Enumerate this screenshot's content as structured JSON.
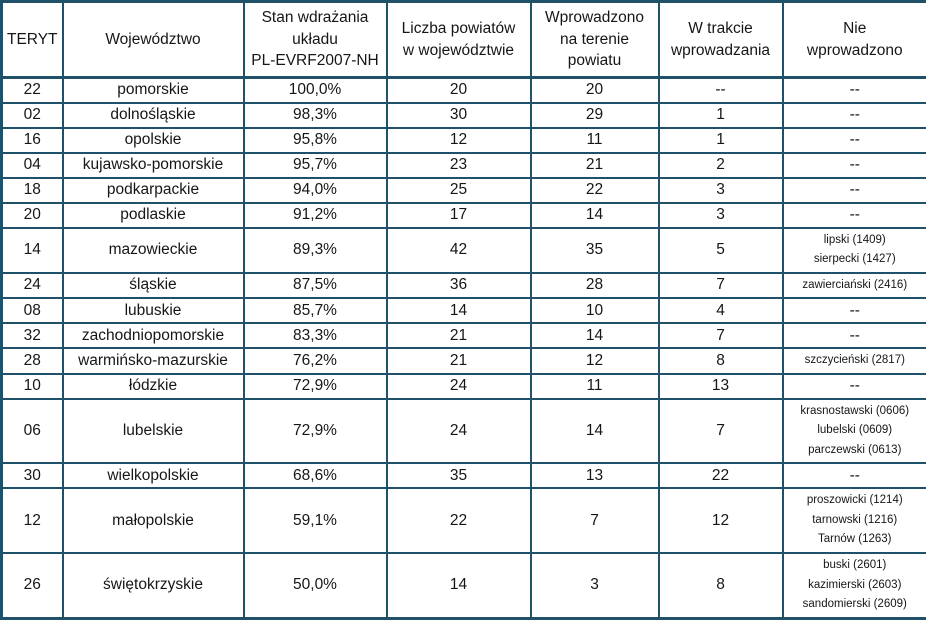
{
  "colors": {
    "table_border": "#1F5168",
    "text": "#161616",
    "background": "#FFFFFF"
  },
  "table": {
    "columns": [
      {
        "key": "teryt",
        "label": "TERYT"
      },
      {
        "key": "wojewodztwo",
        "label": "Województwo"
      },
      {
        "key": "stan",
        "label": "Stan wdrażania\nukładu\nPL-EVRF2007-NH"
      },
      {
        "key": "liczba",
        "label": "Liczba powiatów\nw województwie"
      },
      {
        "key": "wprowadzono",
        "label": "Wprowadzono\nna terenie\npowiatu"
      },
      {
        "key": "w_trakcie",
        "label": "W trakcie\nwprowadzania"
      },
      {
        "key": "nie",
        "label": "Nie\nwprowadzono"
      }
    ],
    "rows": [
      {
        "teryt": "22",
        "wojewodztwo": "pomorskie",
        "stan": "100,0%",
        "liczba": "20",
        "wprowadzono": "20",
        "w_trakcie": "--",
        "nie": "--"
      },
      {
        "teryt": "02",
        "wojewodztwo": "dolnośląskie",
        "stan": "98,3%",
        "liczba": "30",
        "wprowadzono": "29",
        "w_trakcie": "1",
        "nie": "--"
      },
      {
        "teryt": "16",
        "wojewodztwo": "opolskie",
        "stan": "95,8%",
        "liczba": "12",
        "wprowadzono": "11",
        "w_trakcie": "1",
        "nie": "--"
      },
      {
        "teryt": "04",
        "wojewodztwo": "kujawsko-pomorskie",
        "stan": "95,7%",
        "liczba": "23",
        "wprowadzono": "21",
        "w_trakcie": "2",
        "nie": "--"
      },
      {
        "teryt": "18",
        "wojewodztwo": "podkarpackie",
        "stan": "94,0%",
        "liczba": "25",
        "wprowadzono": "22",
        "w_trakcie": "3",
        "nie": "--"
      },
      {
        "teryt": "20",
        "wojewodztwo": "podlaskie",
        "stan": "91,2%",
        "liczba": "17",
        "wprowadzono": "14",
        "w_trakcie": "3",
        "nie": "--"
      },
      {
        "teryt": "14",
        "wojewodztwo": "mazowieckie",
        "stan": "89,3%",
        "liczba": "42",
        "wprowadzono": "35",
        "w_trakcie": "5",
        "nie": "lipski (1409)\nsierpecki (1427)"
      },
      {
        "teryt": "24",
        "wojewodztwo": "śląskie",
        "stan": "87,5%",
        "liczba": "36",
        "wprowadzono": "28",
        "w_trakcie": "7",
        "nie": "zawierciański (2416)"
      },
      {
        "teryt": "08",
        "wojewodztwo": "lubuskie",
        "stan": "85,7%",
        "liczba": "14",
        "wprowadzono": "10",
        "w_trakcie": "4",
        "nie": "--"
      },
      {
        "teryt": "32",
        "wojewodztwo": "zachodniopomorskie",
        "stan": "83,3%",
        "liczba": "21",
        "wprowadzono": "14",
        "w_trakcie": "7",
        "nie": "--"
      },
      {
        "teryt": "28",
        "wojewodztwo": "warmińsko-mazurskie",
        "stan": "76,2%",
        "liczba": "21",
        "wprowadzono": "12",
        "w_trakcie": "8",
        "nie": "szczycieński (2817)"
      },
      {
        "teryt": "10",
        "wojewodztwo": "łódzkie",
        "stan": "72,9%",
        "liczba": "24",
        "wprowadzono": "11",
        "w_trakcie": "13",
        "nie": "--"
      },
      {
        "teryt": "06",
        "wojewodztwo": "lubelskie",
        "stan": "72,9%",
        "liczba": "24",
        "wprowadzono": "14",
        "w_trakcie": "7",
        "nie": "krasnostawski (0606)\nlubelski (0609)\nparczewski (0613)"
      },
      {
        "teryt": "30",
        "wojewodztwo": "wielkopolskie",
        "stan": "68,6%",
        "liczba": "35",
        "wprowadzono": "13",
        "w_trakcie": "22",
        "nie": "--"
      },
      {
        "teryt": "12",
        "wojewodztwo": "małopolskie",
        "stan": "59,1%",
        "liczba": "22",
        "wprowadzono": "7",
        "w_trakcie": "12",
        "nie": "proszowicki (1214)\ntarnowski (1216)\nTarnów (1263)"
      },
      {
        "teryt": "26",
        "wojewodztwo": "świętokrzyskie",
        "stan": "50,0%",
        "liczba": "14",
        "wprowadzono": "3",
        "w_trakcie": "8",
        "nie": "buski (2601)\nkazimierski (2603)\nsandomierski (2609)"
      }
    ]
  }
}
